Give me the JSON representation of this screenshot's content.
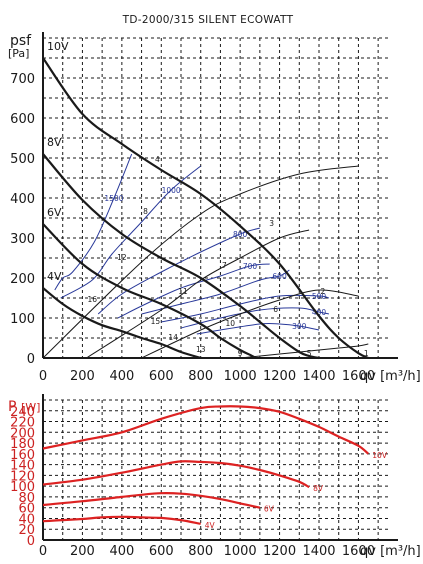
{
  "chart_data": [
    {
      "type": "line",
      "title": "TD-2000/315 SILENT ECOWATT",
      "ylabel": "psf",
      "yunit": "[Pa]",
      "xlabel": "qv",
      "xunit": "[m³/h]",
      "xlim": [
        0,
        1750
      ],
      "ylim": [
        0,
        800
      ],
      "xticks": [
        0,
        200,
        400,
        600,
        800,
        1000,
        1200,
        1400,
        1600
      ],
      "yticks": [
        0,
        100,
        200,
        300,
        400,
        500,
        600,
        700
      ],
      "grid": true,
      "colors": {
        "fan_curves": "#1a1a1a",
        "iso_lines": "#2a3a9a",
        "system_lines": "#1a1a1a"
      },
      "series": [
        {
          "name": "10V",
          "x": [
            0,
            200,
            400,
            600,
            800,
            1000,
            1200,
            1400,
            1500,
            1600,
            1650
          ],
          "y": [
            750,
            610,
            535,
            470,
            410,
            330,
            235,
            105,
            50,
            12,
            0
          ]
        },
        {
          "name": "8V",
          "x": [
            0,
            200,
            400,
            600,
            800,
            1000,
            1100,
            1200,
            1300,
            1350,
            1400
          ],
          "y": [
            510,
            395,
            310,
            250,
            200,
            130,
            90,
            50,
            15,
            5,
            0
          ]
        },
        {
          "name": "6V",
          "x": [
            0,
            200,
            400,
            600,
            800,
            900,
            1000,
            1050,
            1080
          ],
          "y": [
            335,
            235,
            175,
            135,
            85,
            50,
            20,
            8,
            0
          ]
        },
        {
          "name": "4V",
          "x": [
            0,
            100,
            200,
            300,
            400,
            500,
            600,
            700,
            800
          ],
          "y": [
            175,
            135,
            105,
            82,
            67,
            50,
            35,
            15,
            0
          ]
        }
      ],
      "iso_lines": [
        {
          "label": "1500",
          "x": [
            60,
            100,
            150,
            260,
            360,
            450
          ],
          "y": [
            170,
            200,
            215,
            290,
            400,
            510
          ]
        },
        {
          "label": "1000",
          "x": [
            90,
            250,
            350,
            500,
            650,
            800
          ],
          "y": [
            150,
            195,
            260,
            340,
            420,
            480
          ]
        },
        {
          "label": "800",
          "x": [
            280,
            400,
            600,
            800,
            1000,
            1100
          ],
          "y": [
            110,
            160,
            215,
            265,
            310,
            325
          ]
        },
        {
          "label": "700",
          "x": [
            380,
            500,
            700,
            900,
            1050,
            1150
          ],
          "y": [
            100,
            130,
            175,
            205,
            230,
            235
          ]
        },
        {
          "label": "600",
          "x": [
            500,
            700,
            900,
            1100,
            1200,
            1250
          ],
          "y": [
            110,
            135,
            160,
            195,
            205,
            220
          ]
        },
        {
          "label": "500",
          "x": [
            600,
            800,
            1000,
            1200,
            1400,
            1450
          ],
          "y": [
            90,
            110,
            135,
            155,
            155,
            150
          ]
        },
        {
          "label": "400",
          "x": [
            700,
            900,
            1100,
            1300,
            1400,
            1450
          ],
          "y": [
            75,
            100,
            120,
            125,
            115,
            110
          ]
        },
        {
          "label": "300",
          "x": [
            780,
            900,
            1100,
            1200,
            1300,
            1400
          ],
          "y": [
            60,
            70,
            85,
            85,
            80,
            70
          ]
        }
      ],
      "system_lines": [
        {
          "label": "4",
          "x": [
            0,
            500,
            800,
            1000,
            1300,
            1600
          ],
          "y": [
            0,
            240,
            360,
            410,
            460,
            480
          ]
        },
        {
          "label": "3",
          "x": [
            220,
            600,
            800,
            1000,
            1200,
            1350
          ],
          "y": [
            0,
            120,
            195,
            250,
            300,
            320
          ]
        },
        {
          "label": "2",
          "x": [
            500,
            800,
            1000,
            1200,
            1400,
            1600
          ],
          "y": [
            0,
            70,
            110,
            145,
            170,
            155
          ]
        },
        {
          "label": "1",
          "x": [
            1000,
            1200,
            1400,
            1500,
            1600,
            1650
          ],
          "y": [
            0,
            10,
            20,
            25,
            30,
            35
          ]
        }
      ],
      "operating_point_labels": [
        "1",
        "2",
        "3",
        "4",
        "5",
        "6",
        "7",
        "8",
        "9",
        "10",
        "11",
        "12",
        "13",
        "14",
        "15",
        "16"
      ]
    },
    {
      "type": "line",
      "ylabel": "P",
      "yunit": "[W]",
      "xlabel": "qv",
      "xunit": "[m³/h]",
      "xlim": [
        0,
        1750
      ],
      "ylim": [
        0,
        260
      ],
      "xticks": [
        0,
        200,
        400,
        600,
        800,
        1000,
        1200,
        1400,
        1600
      ],
      "yticks": [
        0,
        20,
        40,
        60,
        80,
        100,
        120,
        140,
        160,
        180,
        200,
        220,
        240
      ],
      "grid": true,
      "colors": {
        "power_curves": "#dd2222",
        "axis_labels": "#cc2222"
      },
      "series": [
        {
          "name": "10V",
          "x": [
            0,
            200,
            400,
            600,
            800,
            900,
            1000,
            1100,
            1200,
            1300,
            1400,
            1500,
            1600,
            1650
          ],
          "y": [
            170,
            185,
            200,
            225,
            245,
            248,
            248,
            245,
            238,
            225,
            210,
            192,
            175,
            160
          ]
        },
        {
          "name": "8V",
          "x": [
            0,
            200,
            400,
            600,
            700,
            800,
            900,
            1000,
            1100,
            1200,
            1300,
            1350
          ],
          "y": [
            103,
            112,
            125,
            140,
            146,
            145,
            143,
            138,
            130,
            120,
            108,
            98
          ]
        },
        {
          "name": "6V",
          "x": [
            0,
            200,
            400,
            500,
            600,
            700,
            800,
            900,
            1000,
            1100
          ],
          "y": [
            65,
            72,
            80,
            84,
            87,
            86,
            82,
            76,
            68,
            60
          ]
        },
        {
          "name": "4V",
          "x": [
            0,
            100,
            200,
            300,
            400,
            500,
            600,
            700,
            800
          ],
          "y": [
            35,
            37,
            39,
            42,
            43,
            42,
            41,
            37,
            30
          ]
        }
      ]
    }
  ]
}
